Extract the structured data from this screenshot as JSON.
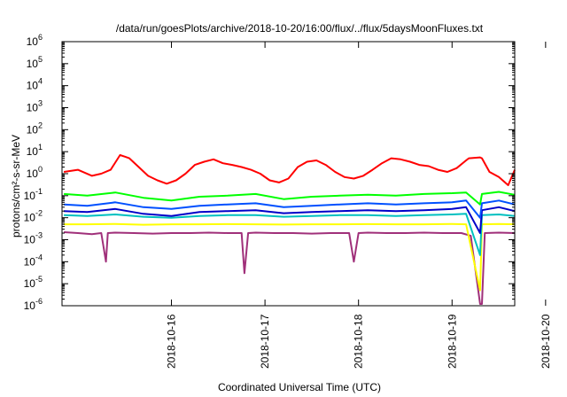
{
  "chart_data": {
    "type": "line",
    "title": "/data/run/goesPlots/archive/2018-10-20/16:00/flux/../flux/5daysMoonFluxes.txt",
    "xlabel": "Coordinated Universal Time (UTC)",
    "ylabel": "protons/cm²-s-sr-MeV",
    "y_scale": "log",
    "ylim": [
      1e-06,
      1000000.0
    ],
    "y_ticks": [
      {
        "value": 1e-06,
        "base": "10",
        "exp": "-6"
      },
      {
        "value": 1e-05,
        "base": "10",
        "exp": "-5"
      },
      {
        "value": 0.0001,
        "base": "10",
        "exp": "-4"
      },
      {
        "value": 0.001,
        "base": "10",
        "exp": "-3"
      },
      {
        "value": 0.01,
        "base": "10",
        "exp": "-2"
      },
      {
        "value": 0.1,
        "base": "10",
        "exp": "-1"
      },
      {
        "value": 1,
        "base": "10",
        "exp": "0"
      },
      {
        "value": 10,
        "base": "10",
        "exp": "1"
      },
      {
        "value": 100,
        "base": "10",
        "exp": "2"
      },
      {
        "value": 1000,
        "base": "10",
        "exp": "3"
      },
      {
        "value": 10000,
        "base": "10",
        "exp": "4"
      },
      {
        "value": 100000,
        "base": "10",
        "exp": "5"
      },
      {
        "value": 1000000,
        "base": "10",
        "exp": "6"
      }
    ],
    "x_ticks": [
      "2018-10-16",
      "2018-10-17",
      "2018-10-18",
      "2018-10-19",
      "2018-10-20"
    ],
    "xlim_days": [
      -1.17,
      3.67
    ],
    "grid": false,
    "legend": "none",
    "series": [
      {
        "color": "#ff0000",
        "x": [
          -1.15,
          -1.0,
          -0.85,
          -0.75,
          -0.65,
          -0.55,
          -0.5,
          -0.45,
          -0.35,
          -0.25,
          -0.15,
          -0.05,
          0.05,
          0.15,
          0.25,
          0.35,
          0.45,
          0.55,
          0.65,
          0.75,
          0.85,
          0.95,
          1.05,
          1.15,
          1.25,
          1.35,
          1.45,
          1.55,
          1.65,
          1.75,
          1.85,
          1.95,
          2.05,
          2.15,
          2.25,
          2.35,
          2.45,
          2.55,
          2.65,
          2.75,
          2.85,
          2.95,
          3.05,
          3.15,
          3.18,
          3.3,
          3.32,
          3.4,
          3.5,
          3.6,
          3.67
        ],
        "y": [
          1.2,
          1.5,
          0.8,
          1.0,
          1.5,
          7,
          6,
          5,
          2,
          0.8,
          0.5,
          0.35,
          0.5,
          1.0,
          2.5,
          3.5,
          4.5,
          3.0,
          2.5,
          2.0,
          1.5,
          1.0,
          0.5,
          0.4,
          0.6,
          2.0,
          3.5,
          4.0,
          2.5,
          1.2,
          0.7,
          0.6,
          0.8,
          1.5,
          3.0,
          5.0,
          4.5,
          3.5,
          2.5,
          2.2,
          1.5,
          1.2,
          1.8,
          4.0,
          5.0,
          5.5,
          5.0,
          1.2,
          0.7,
          0.3,
          1.5
        ]
      },
      {
        "color": "#00ff00",
        "x": [
          -1.15,
          -0.9,
          -0.6,
          -0.3,
          0.0,
          0.3,
          0.6,
          0.9,
          1.2,
          1.5,
          1.8,
          2.1,
          2.4,
          2.7,
          3.0,
          3.15,
          3.3,
          3.32,
          3.5,
          3.67
        ],
        "y": [
          0.12,
          0.1,
          0.14,
          0.08,
          0.06,
          0.09,
          0.1,
          0.12,
          0.07,
          0.09,
          0.1,
          0.11,
          0.1,
          0.12,
          0.13,
          0.14,
          0.04,
          0.12,
          0.15,
          0.11
        ]
      },
      {
        "color": "#0050ff",
        "x": [
          -1.15,
          -0.9,
          -0.6,
          -0.3,
          0.0,
          0.3,
          0.6,
          0.9,
          1.2,
          1.5,
          1.8,
          2.1,
          2.4,
          2.7,
          3.0,
          3.15,
          3.3,
          3.32,
          3.5,
          3.67
        ],
        "y": [
          0.04,
          0.035,
          0.05,
          0.03,
          0.025,
          0.035,
          0.04,
          0.045,
          0.03,
          0.035,
          0.04,
          0.045,
          0.04,
          0.045,
          0.05,
          0.06,
          0.01,
          0.045,
          0.06,
          0.04
        ]
      },
      {
        "color": "#0000c8",
        "x": [
          -1.15,
          -0.9,
          -0.6,
          -0.3,
          0.0,
          0.3,
          0.6,
          0.9,
          1.2,
          1.5,
          1.8,
          2.1,
          2.4,
          2.7,
          3.0,
          3.15,
          3.3,
          3.32,
          3.5,
          3.67
        ],
        "y": [
          0.02,
          0.018,
          0.025,
          0.015,
          0.012,
          0.018,
          0.02,
          0.022,
          0.016,
          0.018,
          0.02,
          0.022,
          0.02,
          0.022,
          0.025,
          0.03,
          0.002,
          0.022,
          0.03,
          0.02
        ]
      },
      {
        "color": "#00c0c0",
        "x": [
          -1.15,
          -0.9,
          -0.6,
          -0.3,
          0.0,
          0.3,
          0.6,
          0.9,
          1.2,
          1.5,
          1.8,
          2.1,
          2.4,
          2.7,
          3.0,
          3.15,
          3.3,
          3.32,
          3.5,
          3.67
        ],
        "y": [
          0.013,
          0.012,
          0.014,
          0.011,
          0.01,
          0.012,
          0.013,
          0.013,
          0.011,
          0.012,
          0.013,
          0.013,
          0.012,
          0.013,
          0.014,
          0.015,
          0.0002,
          0.013,
          0.014,
          0.012
        ]
      },
      {
        "color": "#ffff00",
        "x": [
          -1.15,
          -0.9,
          -0.6,
          -0.3,
          0.0,
          0.3,
          0.6,
          0.9,
          1.2,
          1.5,
          1.8,
          2.1,
          2.4,
          2.7,
          3.0,
          3.15,
          3.3,
          3.32,
          3.5,
          3.67
        ],
        "y": [
          0.005,
          0.005,
          0.0052,
          0.0048,
          0.005,
          0.005,
          0.0051,
          0.005,
          0.0049,
          0.005,
          0.005,
          0.0051,
          0.005,
          0.005,
          0.0052,
          0.005,
          5e-06,
          0.005,
          0.0052,
          0.005
        ]
      },
      {
        "color": "#a0307a",
        "x": [
          -1.15,
          -1.0,
          -0.85,
          -0.75,
          -0.7,
          -0.68,
          -0.6,
          -0.4,
          -0.2,
          0.0,
          0.2,
          0.4,
          0.6,
          0.75,
          0.78,
          0.82,
          0.9,
          1.1,
          1.3,
          1.5,
          1.7,
          1.9,
          1.95,
          2.0,
          2.1,
          2.3,
          2.5,
          2.7,
          2.9,
          3.1,
          3.2,
          3.3,
          3.32,
          3.35,
          3.5,
          3.67
        ],
        "y": [
          0.0022,
          0.002,
          0.0018,
          0.002,
          0.0001,
          0.002,
          0.0021,
          0.002,
          0.0019,
          0.002,
          0.002,
          0.0021,
          0.002,
          0.002,
          3e-05,
          0.002,
          0.0021,
          0.002,
          0.002,
          0.0019,
          0.002,
          0.002,
          0.0001,
          0.002,
          0.0021,
          0.002,
          0.002,
          0.0021,
          0.002,
          0.002,
          0.0015,
          1.2e-06,
          1.2e-06,
          0.002,
          0.0021,
          0.002
        ]
      }
    ]
  }
}
